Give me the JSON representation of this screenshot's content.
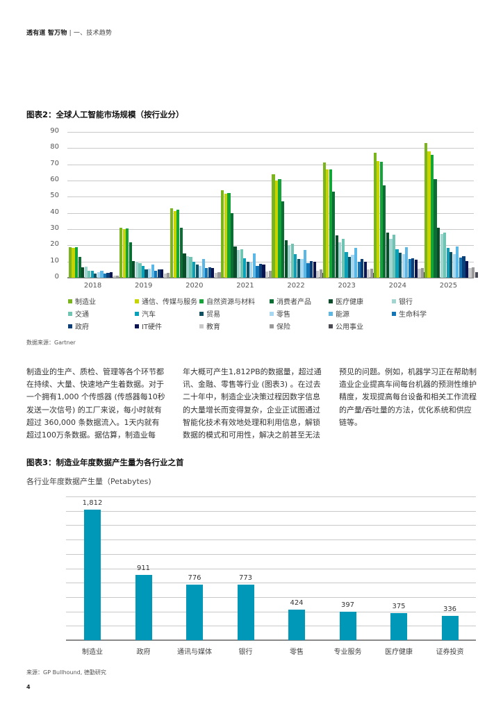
{
  "header": {
    "title": "透有道 智万物",
    "separator": "|",
    "section": "一、技术趋势"
  },
  "figure2": {
    "title": "图表2：全球人工智能市场规模（按行业分）",
    "source": "数据来源：Gartner"
  },
  "figure3": {
    "title": "图表3：制造业年度数据产生量为各行业之首",
    "subtitle": "各行业年度数据产生量（Petabytes)",
    "source": "来源：GP Bullhound, 德勤研究"
  },
  "body_text": {
    "col1": "制造业的生产、质检、管理等各个环节都在持续、大量、快速地产生着数据。对于一个拥有1,000 个传感器 (传感器每10秒发送一次信号) 的工厂来说，每小时就有超过 360,000 条数据流入。1天内就有超过100万条数据。据估算，制造业每",
    "col2": "年大概可产生1,812PB的数据量，超过通讯、金融、零售等行业 (图表3) 。在过去二十年中，制造企业决策过程因数字信息的大量增长而变得复杂，企业正试图通过智能化技术有效地处理和利用信息，解锁数据的模式和可用性，解决之前甚至无法",
    "col3": "预见的问题。例如，机器学习正在帮助制造业企业提高车间每台机器的预测性维护精度，发现提高每台设备和相关工作流程的产量/吞吐量的方法，优化系统和供应链等。"
  },
  "page_number": "4",
  "chart_data": [
    {
      "type": "bar",
      "title": "图表2：全球人工智能市场规模（按行业分）",
      "xlabel": "",
      "ylabel": "",
      "ylim": [
        0,
        90
      ],
      "yticks": [
        "0",
        "10",
        "20",
        "30",
        "40",
        "50",
        "60",
        "70",
        "80",
        "90"
      ],
      "grid": true,
      "legend_position": "bottom",
      "categories": [
        "2018",
        "2019",
        "2020",
        "2021",
        "2022",
        "2023",
        "2024",
        "2025"
      ],
      "series": [
        {
          "name": "制造业",
          "color": "#7ab51d",
          "values": [
            19,
            31,
            43,
            54,
            64,
            71,
            77,
            83
          ]
        },
        {
          "name": "通信、传媒与服务",
          "color": "#c8d400",
          "values": [
            18.5,
            30,
            41,
            52,
            60,
            67,
            72,
            78
          ]
        },
        {
          "name": "自然资源与材料",
          "color": "#13a538",
          "values": [
            19,
            30.5,
            42,
            52.5,
            61,
            67,
            71.5,
            76
          ]
        },
        {
          "name": "消费者产品",
          "color": "#0c6e35",
          "values": [
            13,
            22,
            31,
            40,
            47,
            53,
            57,
            61
          ]
        },
        {
          "name": "医疗健康",
          "color": "#0a4d2b",
          "values": [
            6.5,
            10.5,
            15,
            19.5,
            23,
            26,
            28,
            31
          ]
        },
        {
          "name": "银行",
          "color": "#a3d5d0",
          "values": [
            7,
            10,
            13.5,
            17,
            20,
            22,
            24,
            27
          ]
        },
        {
          "name": "交通",
          "color": "#6fc4b4",
          "values": [
            4.5,
            9,
            13,
            17.5,
            21,
            24,
            26.5,
            28
          ]
        },
        {
          "name": "汽车",
          "color": "#0aa0b8",
          "values": [
            4.5,
            7.5,
            10,
            12,
            14.5,
            16,
            17.5,
            18.5
          ]
        },
        {
          "name": "贸易",
          "color": "#0d5163",
          "values": [
            2.5,
            5,
            8,
            10,
            11.5,
            13,
            15.5,
            16
          ]
        },
        {
          "name": "零售",
          "color": "#a8d8f0",
          "values": [
            3.5,
            5.5,
            7.5,
            9.5,
            11.5,
            14,
            14.5,
            14.5
          ]
        },
        {
          "name": "能源",
          "color": "#5ab7e6",
          "values": [
            4.5,
            8,
            11.5,
            15,
            17,
            18.5,
            19,
            19.5
          ]
        },
        {
          "name": "生命科学",
          "color": "#1475b5",
          "values": [
            2.5,
            4.5,
            6,
            7.5,
            9,
            10,
            11.5,
            12.5
          ]
        },
        {
          "name": "政府",
          "color": "#0c3f78",
          "values": [
            3,
            5,
            6.5,
            8.5,
            10.5,
            11.5,
            12,
            13.5
          ]
        },
        {
          "name": "IT硬件",
          "color": "#0a1550",
          "values": [
            3.5,
            5,
            6,
            8,
            10,
            10,
            11,
            10.5
          ]
        },
        {
          "name": "教育",
          "color": "#c8c8c8",
          "values": [
            1.5,
            2.5,
            3,
            4,
            4.5,
            5,
            5.5,
            6
          ]
        },
        {
          "name": "保险",
          "color": "#9a9a9a",
          "values": [
            1.5,
            3,
            3.5,
            4.5,
            5,
            5.5,
            6,
            6.5
          ]
        },
        {
          "name": "公用事业",
          "color": "#4a4a55",
          "values": [
            0.5,
            1.5,
            2,
            2.5,
            3,
            3,
            3.5,
            3.5
          ]
        }
      ]
    },
    {
      "type": "bar",
      "title": "图表3：制造业年度数据产生量为各行业之首",
      "subtitle": "各行业年度数据产生量（Petabytes)",
      "xlabel": "",
      "ylabel": "Petabytes",
      "ylim": [
        0,
        2000
      ],
      "grid": true,
      "color": "#0098b8",
      "categories": [
        "制造业",
        "政府",
        "通讯与媒体",
        "银行",
        "零售",
        "专业服务",
        "医疗健康",
        "证券投资"
      ],
      "values": [
        1812,
        911,
        776,
        773,
        424,
        397,
        375,
        336
      ],
      "value_labels": [
        "1,812",
        "911",
        "776",
        "773",
        "424",
        "397",
        "375",
        "336"
      ]
    }
  ]
}
